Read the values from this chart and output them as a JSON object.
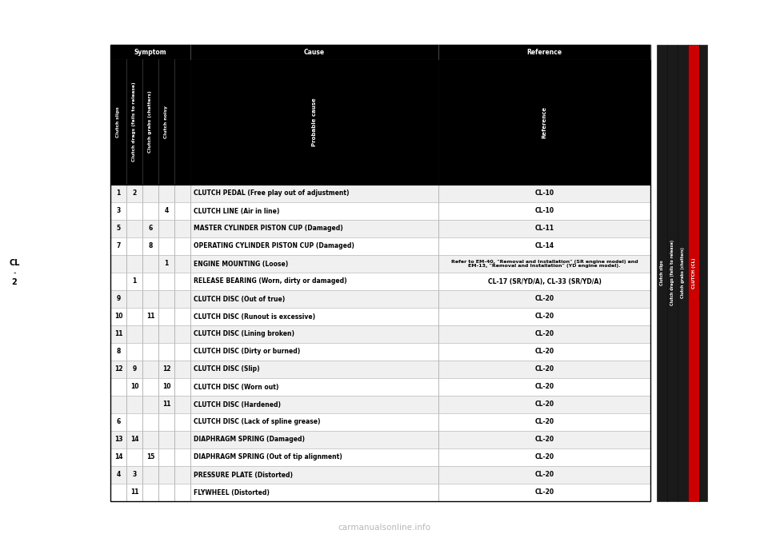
{
  "bg_color": "#ffffff",
  "rows": [
    {
      "nums": [
        "1",
        "2",
        "",
        "",
        ""
      ],
      "cause": "CLUTCH PEDAL (Free play out of adjustment)",
      "ref": "CL-10"
    },
    {
      "nums": [
        "3",
        "",
        "",
        "4",
        ""
      ],
      "cause": "CLUTCH LINE (Air in line)",
      "ref": "CL-10"
    },
    {
      "nums": [
        "5",
        "",
        "6",
        "",
        ""
      ],
      "cause": "MASTER CYLINDER PISTON CUP (Damaged)",
      "ref": "CL-11"
    },
    {
      "nums": [
        "7",
        "",
        "8",
        "",
        ""
      ],
      "cause": "OPERATING CYLINDER PISTON CUP (Damaged)",
      "ref": "CL-14"
    },
    {
      "nums": [
        "",
        "",
        "",
        "1",
        ""
      ],
      "cause": "ENGINE MOUNTING (Loose)",
      "ref": "Refer to EM-40, \"Removal and Installation\" (SR engine model) and\nEM-13, \"Removal and Installation\" (YD engine model)."
    },
    {
      "nums": [
        "",
        "1",
        "",
        "",
        ""
      ],
      "cause": "RELEASE BEARING (Worn, dirty or damaged)",
      "ref": "CL-17 (SR/YD/A), CL-33 (SR/YD/A)"
    },
    {
      "nums": [
        "9",
        "",
        "",
        "",
        ""
      ],
      "cause": "CLUTCH DISC (Out of true)",
      "ref": "CL-20"
    },
    {
      "nums": [
        "10",
        "",
        "11",
        "",
        ""
      ],
      "cause": "CLUTCH DISC (Runout is excessive)",
      "ref": "CL-20"
    },
    {
      "nums": [
        "11",
        "",
        "",
        "",
        ""
      ],
      "cause": "CLUTCH DISC (Lining broken)",
      "ref": "CL-20"
    },
    {
      "nums": [
        "8",
        "",
        "",
        "",
        ""
      ],
      "cause": "CLUTCH DISC (Dirty or burned)",
      "ref": "CL-20"
    },
    {
      "nums": [
        "12",
        "9",
        "",
        "12",
        ""
      ],
      "cause": "CLUTCH DISC (Slip)",
      "ref": "CL-20"
    },
    {
      "nums": [
        "",
        "10",
        "",
        "10",
        ""
      ],
      "cause": "CLUTCH DISC (Worn out)",
      "ref": "CL-20"
    },
    {
      "nums": [
        "",
        "",
        "",
        "11",
        ""
      ],
      "cause": "CLUTCH DISC (Hardened)",
      "ref": "CL-20"
    },
    {
      "nums": [
        "6",
        "",
        "",
        "",
        ""
      ],
      "cause": "CLUTCH DISC (Lack of spline grease)",
      "ref": "CL-20"
    },
    {
      "nums": [
        "13",
        "14",
        "",
        "",
        ""
      ],
      "cause": "DIAPHRAGM SPRING (Damaged)",
      "ref": "CL-20"
    },
    {
      "nums": [
        "14",
        "",
        "15",
        "",
        ""
      ],
      "cause": "DIAPHRAGM SPRING (Out of tip alignment)",
      "ref": "CL-20"
    },
    {
      "nums": [
        "4",
        "3",
        "",
        "",
        ""
      ],
      "cause": "PRESSURE PLATE (Distorted)",
      "ref": "CL-20"
    },
    {
      "nums": [
        "",
        "11",
        "",
        "",
        ""
      ],
      "cause": "FLYWHEEL (Distorted)",
      "ref": "CL-20"
    }
  ],
  "symptom_columns": [
    "Clutch slips",
    "Clutch drags (fails to release)",
    "Clutch grabs (chatters)",
    "Clutch noisy",
    ""
  ],
  "right_sections": [
    {
      "label": "Clutch slips",
      "rows": 6
    },
    {
      "label": "Clutch drags\n(fails to release)",
      "rows": 6
    },
    {
      "label": "Clutch grabs\n(chatters)",
      "rows": 3
    },
    {
      "label": "Clutch noisy",
      "rows": 3
    }
  ],
  "red_label": "CLUTCH (CL)",
  "cl_label": "CL\n-\n2",
  "watermark": "carmanualsonline.info"
}
